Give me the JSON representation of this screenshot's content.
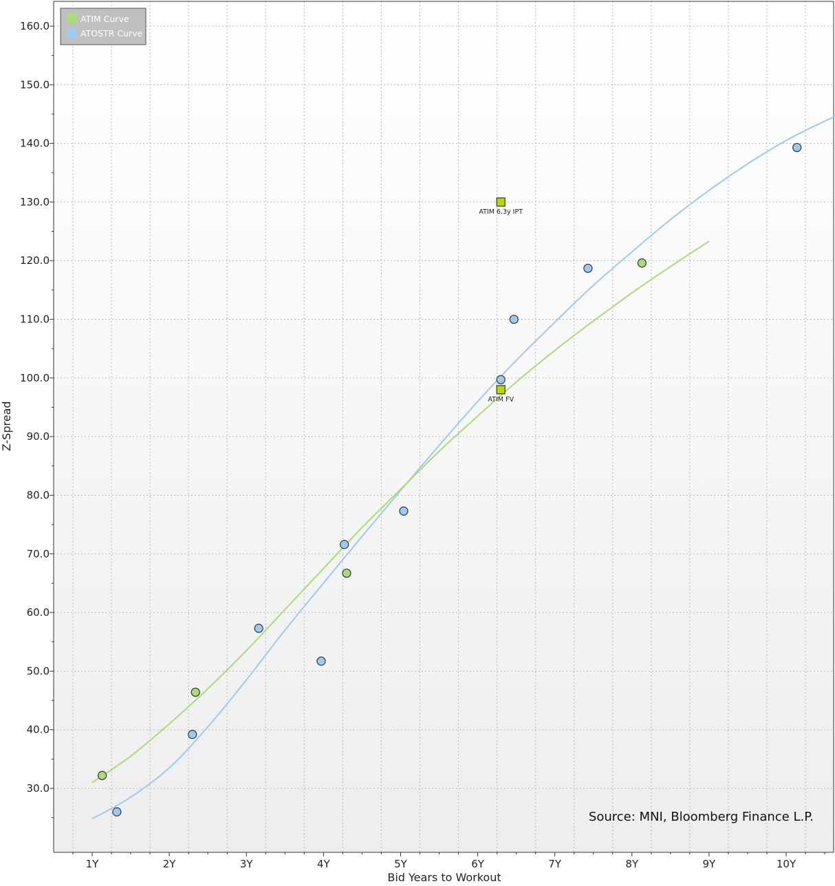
{
  "chart_data": {
    "type": "scatter",
    "title": "",
    "xlabel": "Bid Years to Workout",
    "ylabel": "Z-Spread",
    "xlim": [
      0.75,
      10.8
    ],
    "ylim": [
      20.5,
      164.5
    ],
    "x_ticks": [
      {
        "value": 1,
        "label": "1Y"
      },
      {
        "value": 2,
        "label": "2Y"
      },
      {
        "value": 3,
        "label": "3Y"
      },
      {
        "value": 4,
        "label": "4Y"
      },
      {
        "value": 5,
        "label": "5Y"
      },
      {
        "value": 6,
        "label": "6Y"
      },
      {
        "value": 7,
        "label": "7Y"
      },
      {
        "value": 8,
        "label": "8Y"
      },
      {
        "value": 9,
        "label": "9Y"
      },
      {
        "value": 10,
        "label": "10Y"
      }
    ],
    "y_ticks": [
      {
        "value": 30,
        "label": "30.0"
      },
      {
        "value": 40,
        "label": "40.0"
      },
      {
        "value": 50,
        "label": "50.0"
      },
      {
        "value": 60,
        "label": "60.0"
      },
      {
        "value": 70,
        "label": "70.0"
      },
      {
        "value": 80,
        "label": "80.0"
      },
      {
        "value": 90,
        "label": "90.0"
      },
      {
        "value": 100,
        "label": "100.0"
      },
      {
        "value": 110,
        "label": "110.0"
      },
      {
        "value": 120,
        "label": "120.0"
      },
      {
        "value": 130,
        "label": "130.0"
      },
      {
        "value": 140,
        "label": "140.0"
      },
      {
        "value": 150,
        "label": "150.0"
      },
      {
        "value": 160,
        "label": "160.0"
      }
    ],
    "grid": true,
    "legend_position": "top-left",
    "series": [
      {
        "name": "ATIM Curve",
        "color": "#a8dc78",
        "points": [
          {
            "x": 1.13,
            "y": 32.2
          },
          {
            "x": 2.34,
            "y": 46.4
          },
          {
            "x": 4.3,
            "y": 66.7
          },
          {
            "x": 8.13,
            "y": 119.6
          }
        ],
        "curve": [
          {
            "x": 1.0,
            "y": 31.0
          },
          {
            "x": 1.5,
            "y": 35.5
          },
          {
            "x": 2.0,
            "y": 41.0
          },
          {
            "x": 2.5,
            "y": 47.0
          },
          {
            "x": 3.0,
            "y": 53.5
          },
          {
            "x": 3.5,
            "y": 60.5
          },
          {
            "x": 4.0,
            "y": 67.5
          },
          {
            "x": 4.5,
            "y": 74.5
          },
          {
            "x": 5.0,
            "y": 81.0
          },
          {
            "x": 5.5,
            "y": 87.5
          },
          {
            "x": 6.0,
            "y": 93.5
          },
          {
            "x": 6.5,
            "y": 99.3
          },
          {
            "x": 7.0,
            "y": 104.7
          },
          {
            "x": 7.5,
            "y": 109.7
          },
          {
            "x": 8.0,
            "y": 114.5
          },
          {
            "x": 8.5,
            "y": 119.0
          },
          {
            "x": 9.0,
            "y": 123.3
          }
        ]
      },
      {
        "name": "ATOSTR Curve",
        "color": "#9ccaf0",
        "points": [
          {
            "x": 1.32,
            "y": 26.0
          },
          {
            "x": 2.3,
            "y": 39.2
          },
          {
            "x": 3.16,
            "y": 57.3
          },
          {
            "x": 3.97,
            "y": 51.7
          },
          {
            "x": 4.27,
            "y": 71.6
          },
          {
            "x": 5.04,
            "y": 77.3
          },
          {
            "x": 6.3,
            "y": 99.7
          },
          {
            "x": 6.47,
            "y": 110.0
          },
          {
            "x": 7.43,
            "y": 118.7
          },
          {
            "x": 10.14,
            "y": 139.3
          }
        ],
        "curve": [
          {
            "x": 1.0,
            "y": 24.8
          },
          {
            "x": 1.5,
            "y": 28.5
          },
          {
            "x": 2.0,
            "y": 33.5
          },
          {
            "x": 2.5,
            "y": 40.5
          },
          {
            "x": 3.0,
            "y": 48.5
          },
          {
            "x": 3.5,
            "y": 57.0
          },
          {
            "x": 4.0,
            "y": 65.0
          },
          {
            "x": 4.5,
            "y": 73.0
          },
          {
            "x": 5.0,
            "y": 80.8
          },
          {
            "x": 5.5,
            "y": 88.5
          },
          {
            "x": 6.0,
            "y": 96.0
          },
          {
            "x": 6.5,
            "y": 103.0
          },
          {
            "x": 7.0,
            "y": 109.5
          },
          {
            "x": 7.5,
            "y": 115.8
          },
          {
            "x": 8.0,
            "y": 121.5
          },
          {
            "x": 8.5,
            "y": 127.0
          },
          {
            "x": 9.0,
            "y": 132.0
          },
          {
            "x": 9.5,
            "y": 136.5
          },
          {
            "x": 10.0,
            "y": 140.5
          },
          {
            "x": 10.5,
            "y": 143.8
          },
          {
            "x": 10.8,
            "y": 145.5
          }
        ]
      }
    ],
    "annotations": [
      {
        "label": "ATIM 6.3y IPT",
        "x": 6.3,
        "y": 130.0,
        "color": "#b8d800"
      },
      {
        "label": "ATIM FV",
        "x": 6.3,
        "y": 98.0,
        "color": "#b8d800"
      }
    ],
    "source_note": "Source: MNI, Bloomberg Finance L.P."
  }
}
